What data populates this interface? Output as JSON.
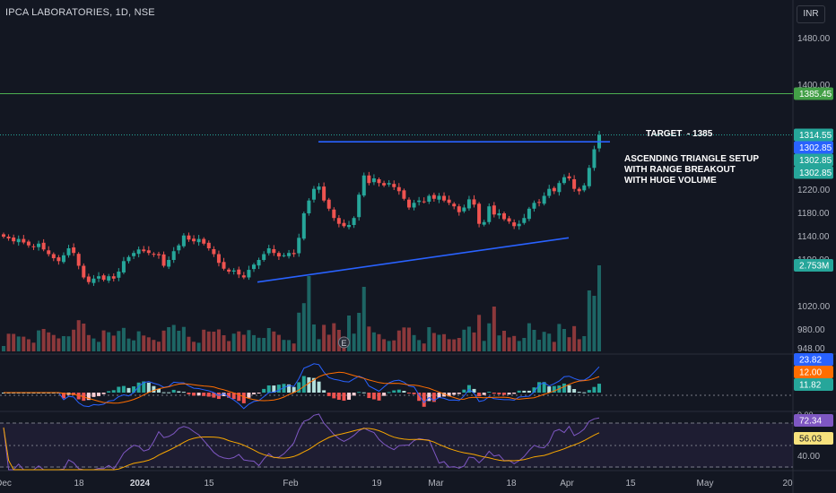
{
  "header": {
    "title": "IPCA LABORATORIES, 1D, NSE",
    "currency": "INR"
  },
  "annotations": {
    "target": "TARGET  - 1385",
    "setup_lines": [
      "ASCENDING TRIANGLE SETUP",
      "WITH RANGE BREAKOUT",
      "WITH HUGE VOLUME"
    ]
  },
  "colors": {
    "background": "#131722",
    "up": "#26a69a",
    "down": "#ef5350",
    "trendline": "#2962ff",
    "target_line": "#4caf50",
    "macd_line": "#2962ff",
    "signal_line": "#ff6d00",
    "rsi_line": "#7e57c2",
    "rsi_ma": "#f7a600"
  },
  "chart_data": {
    "type": "candlestick",
    "symbol": "IPCA LABORATORIES",
    "interval": "1D",
    "exchange": "NSE",
    "price_axis": {
      "range": [
        940,
        1500
      ],
      "ticks": [
        "1480.00",
        "1400.00",
        "1220.00",
        "1180.00",
        "1140.00",
        "1100.00",
        "1020.00",
        "980.00",
        "948.00"
      ]
    },
    "time_axis": {
      "labels": [
        "Dec",
        "18",
        "2024",
        "15",
        "Feb",
        "19",
        "Mar",
        "18",
        "Apr",
        "15",
        "May",
        "20"
      ]
    },
    "candles_close": [
      1140,
      1137,
      1132,
      1136,
      1130,
      1125,
      1122,
      1128,
      1118,
      1110,
      1103,
      1098,
      1108,
      1120,
      1112,
      1090,
      1070,
      1062,
      1068,
      1072,
      1066,
      1072,
      1068,
      1080,
      1098,
      1105,
      1112,
      1118,
      1115,
      1112,
      1110,
      1108,
      1090,
      1100,
      1115,
      1125,
      1142,
      1135,
      1132,
      1136,
      1128,
      1120,
      1110,
      1095,
      1085,
      1080,
      1082,
      1075,
      1070,
      1083,
      1092,
      1100,
      1110,
      1120,
      1112,
      1106,
      1108,
      1112,
      1110,
      1138,
      1180,
      1202,
      1222,
      1226,
      1202,
      1188,
      1172,
      1162,
      1158,
      1160,
      1172,
      1212,
      1245,
      1232,
      1240,
      1232,
      1228,
      1232,
      1225,
      1218,
      1205,
      1190,
      1198,
      1202,
      1200,
      1210,
      1205,
      1210,
      1202,
      1198,
      1192,
      1182,
      1190,
      1204,
      1195,
      1162,
      1165,
      1192,
      1178,
      1180,
      1170,
      1166,
      1158,
      1162,
      1172,
      1188,
      1198,
      1198,
      1210,
      1222,
      1218,
      1232,
      1242,
      1240,
      1222,
      1218,
      1228,
      1258,
      1290,
      1314.55
    ],
    "key_levels": [
      {
        "label": "1385.45",
        "value": 1385.45
      },
      {
        "label": "1314.55",
        "value": 1314.55
      },
      {
        "label": "1302.85",
        "value": 1302.85
      }
    ],
    "volume": {
      "last_label": "2.753M",
      "last_value": 2753000
    },
    "macd": {
      "labels": [
        "23.82",
        "12.00",
        "11.82"
      ],
      "macd": 23.82,
      "signal": 12.0,
      "histogram": 11.82
    },
    "rsi": {
      "labels": [
        "72.34",
        "56.03",
        "40.00"
      ],
      "rsi": 72.34,
      "ma": 56.03,
      "lower_level": 40.0
    }
  }
}
